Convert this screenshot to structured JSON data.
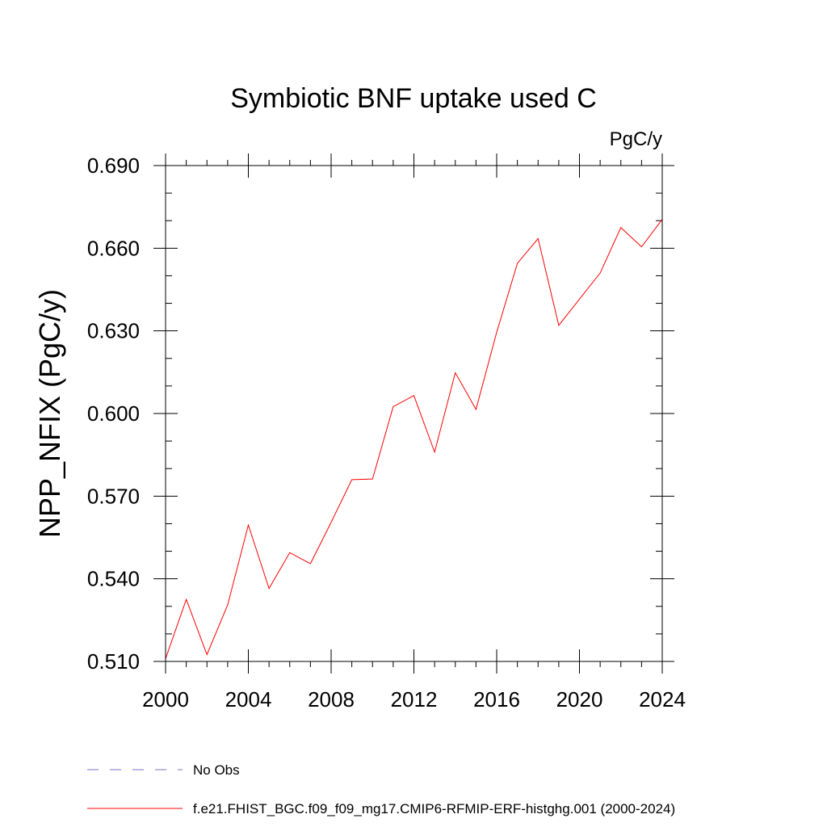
{
  "chart_data": {
    "type": "line",
    "title": "Symbiotic BNF uptake used C",
    "units_label": "PgC/y",
    "ylabel": "NPP_NFIX  (PgC/y)",
    "xlabel": "",
    "xlim": [
      2000,
      2024
    ],
    "ylim": [
      0.51,
      0.69
    ],
    "x_ticks": [
      2000,
      2004,
      2008,
      2012,
      2016,
      2020,
      2024
    ],
    "x_tick_labels": [
      "2000",
      "2004",
      "2008",
      "2012",
      "2016",
      "2020",
      "2024"
    ],
    "y_ticks": [
      0.51,
      0.54,
      0.57,
      0.6,
      0.63,
      0.66,
      0.69
    ],
    "y_tick_labels": [
      "0.510",
      "0.540",
      "0.570",
      "0.600",
      "0.630",
      "0.660",
      "0.690"
    ],
    "grid": false,
    "legend_position": "bottom-left",
    "series": [
      {
        "name": "No Obs",
        "color": "#7f6fbf",
        "dash": "dashed",
        "x": [],
        "y": []
      },
      {
        "name": "f.e21.FHIST_BGC.f09_f09_mg17.CMIP6-RFMIP-ERF-histghg.001 (2000-2024)",
        "color": "#ff0000",
        "dash": "solid",
        "x": [
          2000,
          2001,
          2002,
          2003,
          2004,
          2005,
          2006,
          2007,
          2008,
          2009,
          2010,
          2011,
          2012,
          2013,
          2014,
          2015,
          2016,
          2017,
          2018,
          2019,
          2020,
          2021,
          2022,
          2023,
          2024
        ],
        "y": [
          0.511,
          0.5325,
          0.5125,
          0.5305,
          0.5595,
          0.5365,
          0.5495,
          0.5455,
          0.5605,
          0.576,
          0.5762,
          0.6025,
          0.6065,
          0.586,
          0.6148,
          0.6015,
          0.6295,
          0.6545,
          0.6635,
          0.632,
          0.6415,
          0.651,
          0.6675,
          0.6605,
          0.6705
        ]
      }
    ]
  }
}
